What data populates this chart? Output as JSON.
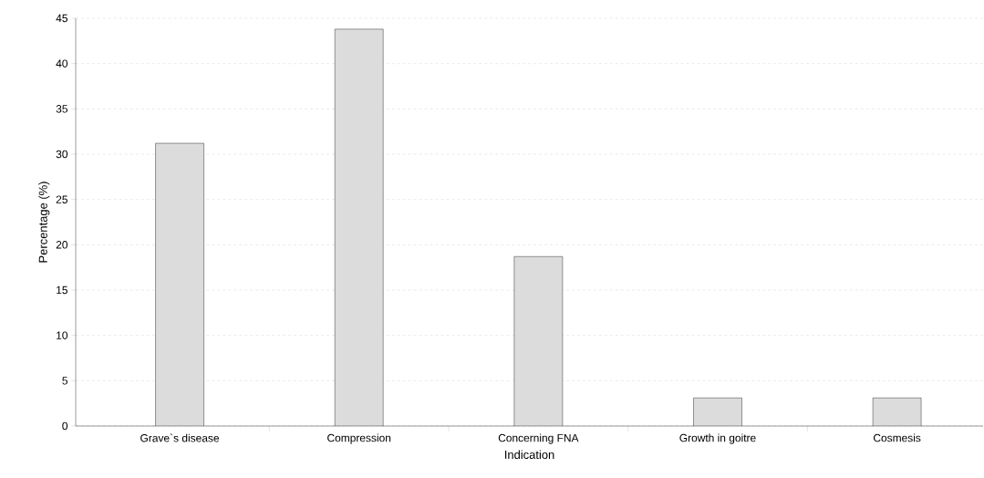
{
  "chart_data": {
    "type": "bar",
    "xlabel": "Indication",
    "ylabel": "Percentage (%)",
    "categories": [
      "Grave`s disease",
      "Compression",
      "Concerning FNA",
      "Growth in goitre",
      "Cosmesis"
    ],
    "values": [
      31.2,
      43.8,
      18.7,
      3.1,
      3.1
    ],
    "color": "#dcdcdc",
    "ylim": [
      0,
      45
    ],
    "yticks": [
      0,
      5,
      10,
      15,
      20,
      25,
      30,
      35,
      40,
      45
    ],
    "grid": "y"
  }
}
